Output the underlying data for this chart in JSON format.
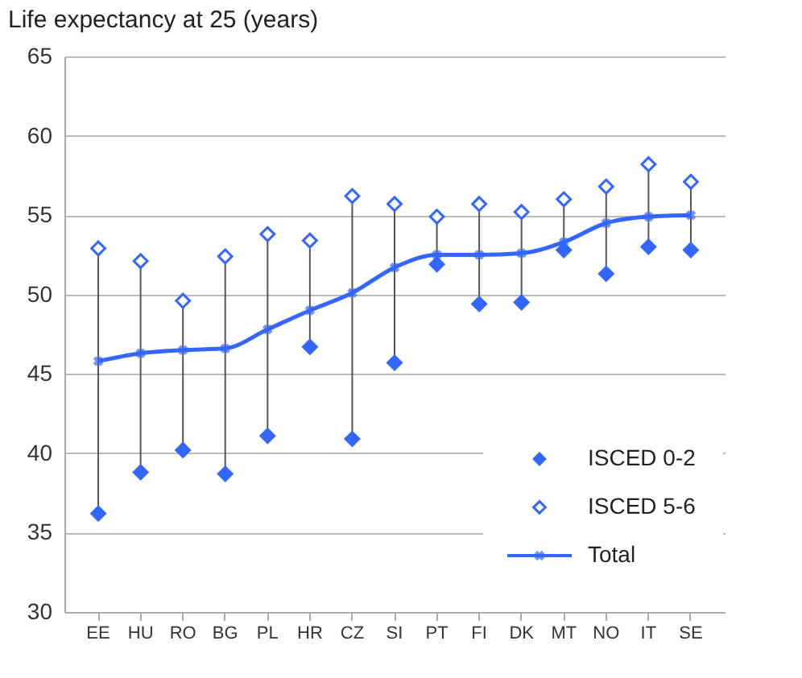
{
  "chart_data": {
    "type": "scatter",
    "title": "Life expectancy at 25 (years)",
    "categories": [
      "EE",
      "HU",
      "RO",
      "BG",
      "PL",
      "HR",
      "CZ",
      "SI",
      "PT",
      "FI",
      "DK",
      "MT",
      "NO",
      "IT",
      "SE"
    ],
    "series": [
      {
        "name": "ISCED 0-2",
        "marker": "diamond",
        "color": "#3366ff",
        "values": [
          36.2,
          38.8,
          40.2,
          38.7,
          41.1,
          46.7,
          40.9,
          45.7,
          51.9,
          49.4,
          49.5,
          52.8,
          51.3,
          53.0,
          52.8
        ]
      },
      {
        "name": "ISCED 5-6",
        "marker": "diamond",
        "color": "#3366ff",
        "values": [
          52.9,
          52.1,
          49.6,
          52.4,
          53.8,
          53.4,
          56.2,
          55.7,
          54.9,
          55.7,
          55.2,
          56.0,
          56.8,
          58.2,
          57.1
        ]
      },
      {
        "name": "Total",
        "type": "line",
        "marker": "cross",
        "line_style": "solid",
        "color": "#3366ff",
        "values": [
          45.8,
          46.3,
          46.5,
          46.6,
          47.8,
          49.0,
          50.1,
          51.7,
          52.5,
          52.5,
          52.6,
          53.3,
          54.5,
          54.9,
          55.0
        ]
      }
    ],
    "ylim": [
      30,
      65
    ],
    "yticks": [
      30,
      35,
      40,
      45,
      50,
      55,
      60,
      65
    ],
    "grid": "y",
    "legend": "bottom right"
  }
}
